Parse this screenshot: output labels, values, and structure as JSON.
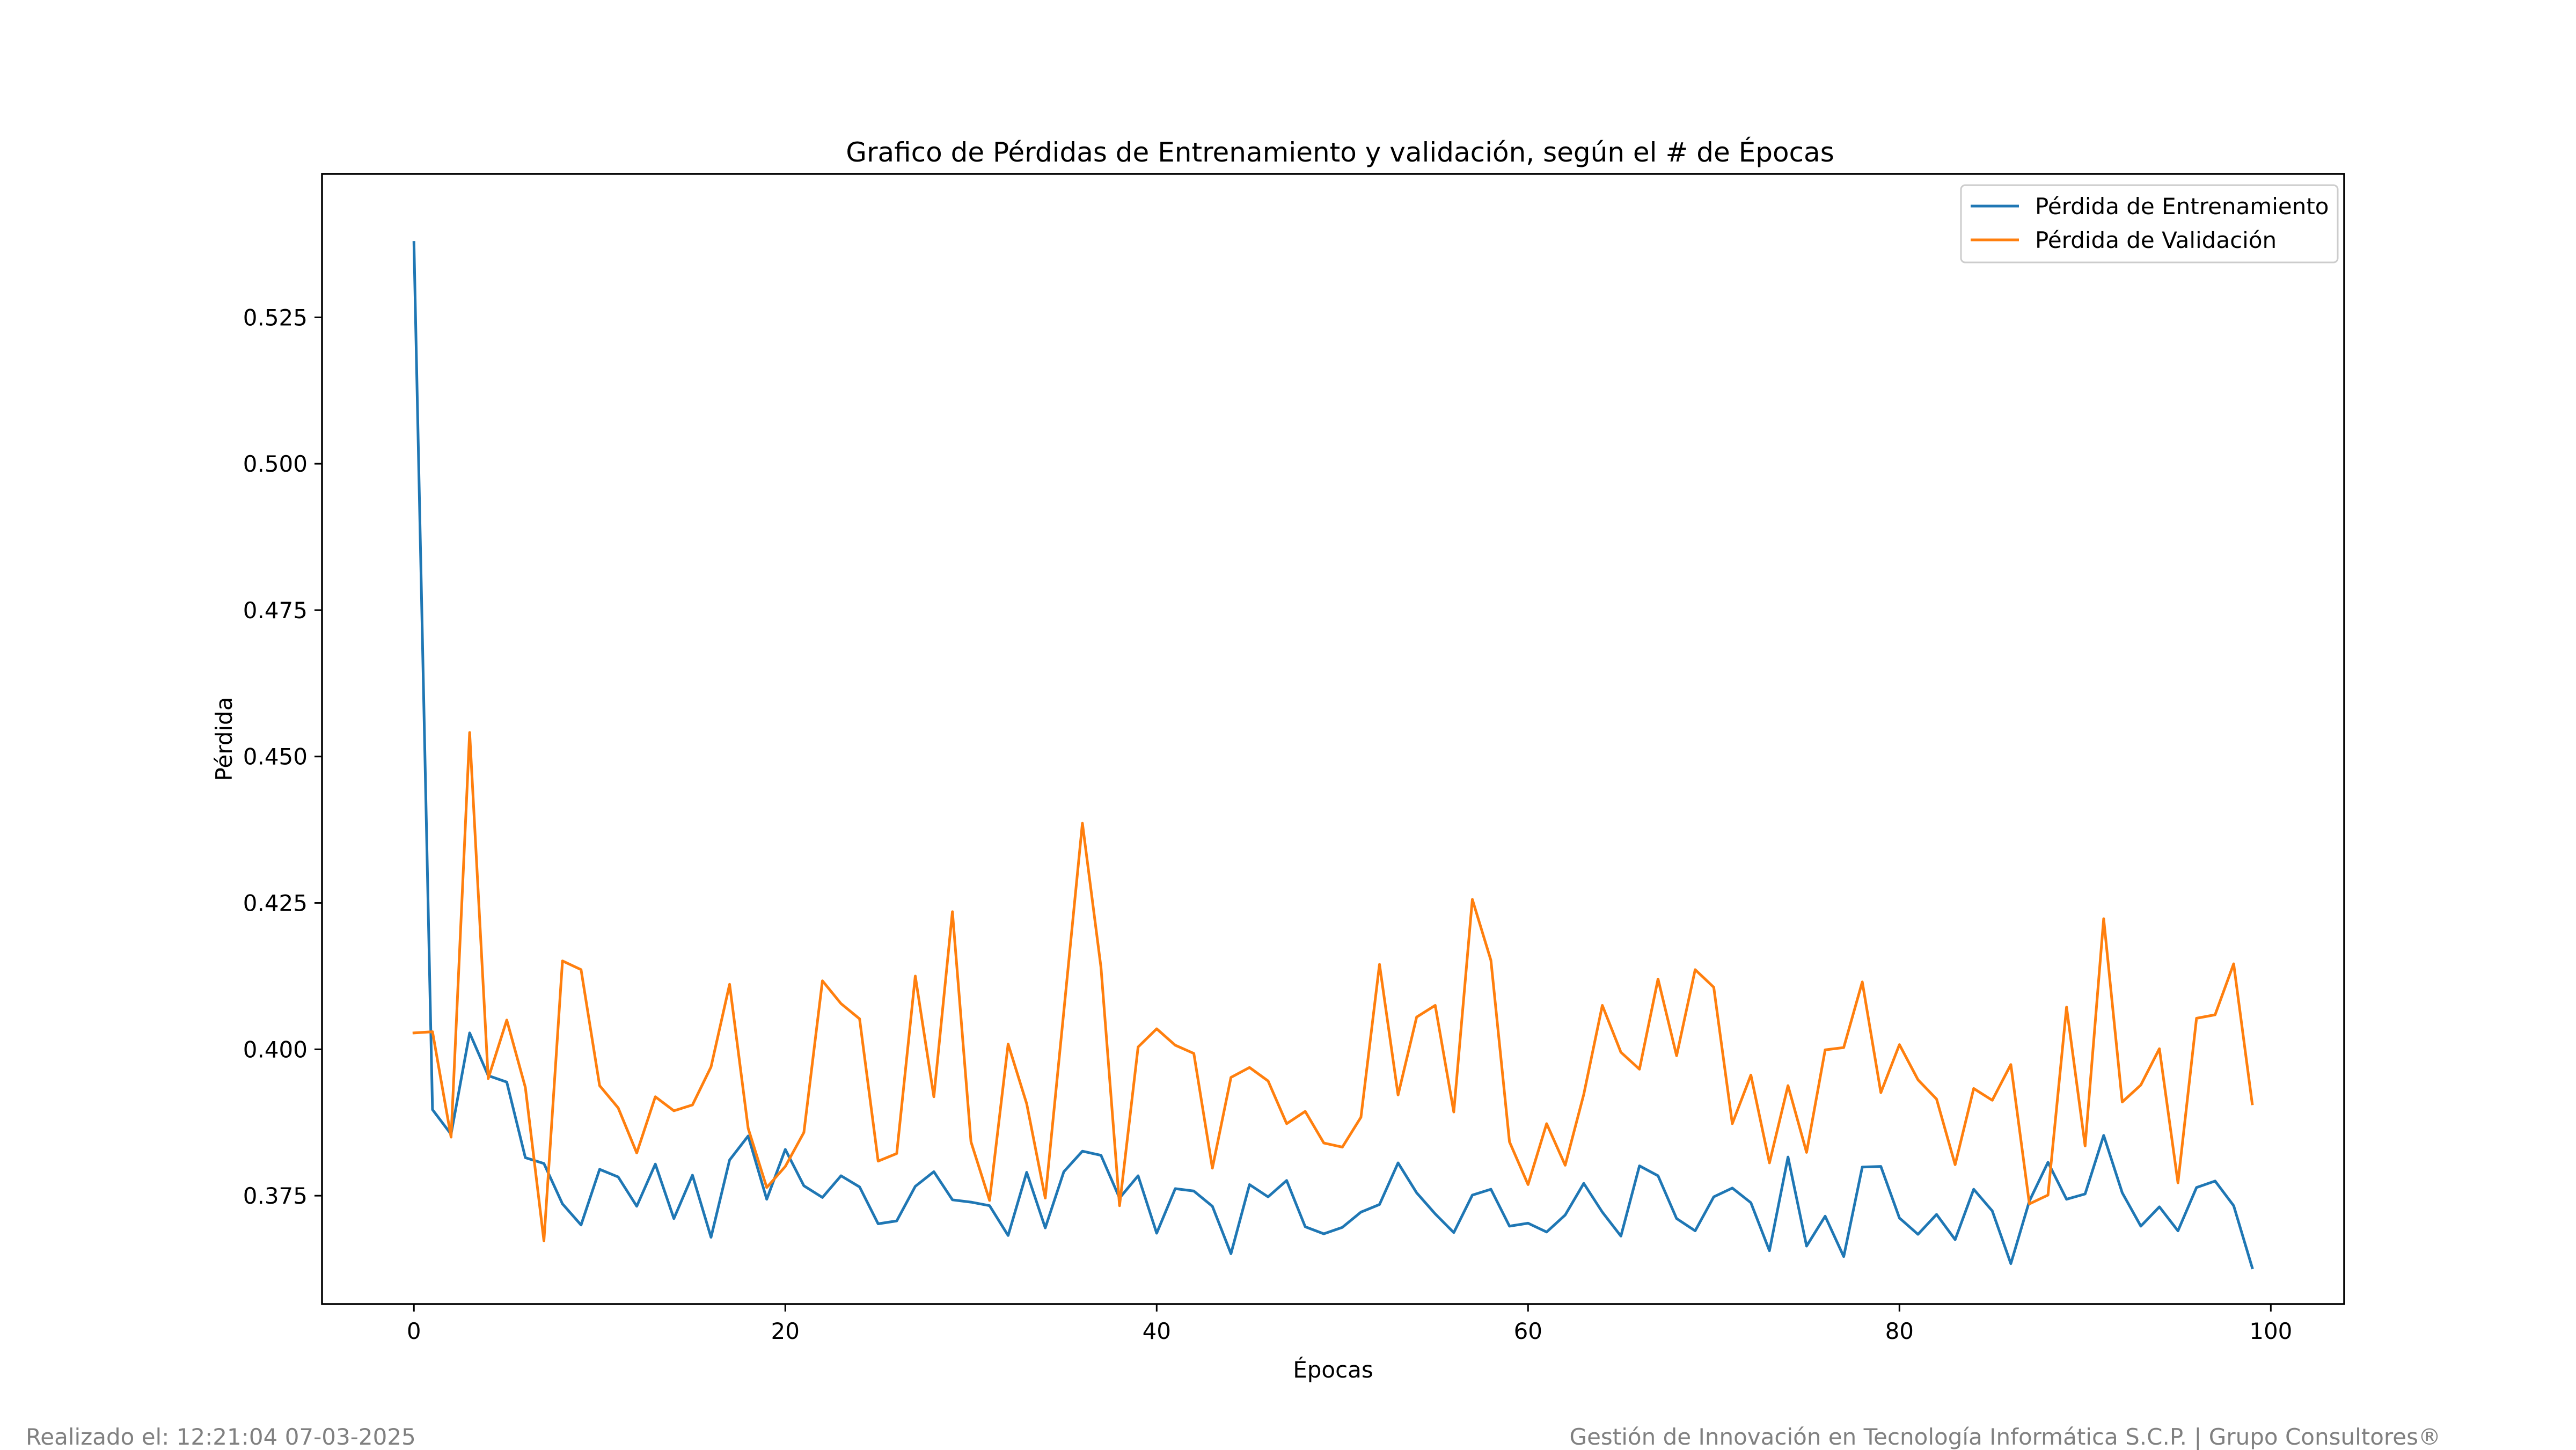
{
  "footer": {
    "left": "Realizado el: 12:21:04 07-03-2025",
    "right": "Gestión de Innovación en Tecnología Informática S.C.P. | Grupo Consultores®"
  },
  "chart_data": {
    "type": "line",
    "title": "Grafico de Pérdidas de Entrenamiento y validación, según el # de Épocas",
    "xlabel": "Épocas",
    "ylabel": "Pérdida",
    "xlim": [
      -4.95,
      103.95
    ],
    "ylim": [
      0.3565,
      0.5495
    ],
    "xticks": [
      0,
      20,
      40,
      60,
      80,
      100
    ],
    "yticks": [
      0.375,
      0.4,
      0.425,
      0.45,
      0.475,
      0.5,
      0.525
    ],
    "ytick_labels": [
      "0.375",
      "0.400",
      "0.425",
      "0.450",
      "0.475",
      "0.500",
      "0.525"
    ],
    "grid": false,
    "legend_position": "upper right",
    "series": [
      {
        "name": "Pérdida de Entrenamiento",
        "color": "#1f77b4",
        "values": [
          0.5378,
          0.3897,
          0.3855,
          0.4028,
          0.3955,
          0.3944,
          0.3815,
          0.3805,
          0.3736,
          0.37,
          0.3795,
          0.3782,
          0.3732,
          0.3804,
          0.3711,
          0.3785,
          0.3679,
          0.3811,
          0.3852,
          0.3744,
          0.3829,
          0.3767,
          0.3747,
          0.3784,
          0.3765,
          0.3702,
          0.3707,
          0.3766,
          0.3791,
          0.3743,
          0.3739,
          0.3733,
          0.3682,
          0.379,
          0.3695,
          0.3791,
          0.3826,
          0.3819,
          0.3746,
          0.3784,
          0.3686,
          0.3762,
          0.3758,
          0.3732,
          0.3651,
          0.3769,
          0.3748,
          0.3776,
          0.3697,
          0.3685,
          0.3696,
          0.3722,
          0.3735,
          0.3806,
          0.3755,
          0.3719,
          0.3687,
          0.3751,
          0.3761,
          0.3698,
          0.3703,
          0.3688,
          0.3717,
          0.3771,
          0.3722,
          0.3681,
          0.3801,
          0.3784,
          0.3711,
          0.369,
          0.3748,
          0.3763,
          0.3738,
          0.3656,
          0.3816,
          0.3664,
          0.3715,
          0.3646,
          0.3799,
          0.38,
          0.3712,
          0.3684,
          0.3718,
          0.3675,
          0.3761,
          0.3724,
          0.3634,
          0.3741,
          0.3807,
          0.3744,
          0.3753,
          0.3853,
          0.3755,
          0.3698,
          0.3731,
          0.369,
          0.3764,
          0.3775,
          0.3733,
          0.3627
        ]
      },
      {
        "name": "Pérdida de Validación",
        "color": "#ff7f0e",
        "values": [
          0.4028,
          0.403,
          0.385,
          0.4541,
          0.395,
          0.405,
          0.3935,
          0.3673,
          0.4151,
          0.4136,
          0.3938,
          0.39,
          0.3823,
          0.3919,
          0.3895,
          0.3905,
          0.397,
          0.4111,
          0.3865,
          0.3764,
          0.38,
          0.3858,
          0.4117,
          0.4078,
          0.4052,
          0.3809,
          0.3822,
          0.4125,
          0.3919,
          0.4235,
          0.3842,
          0.3742,
          0.4009,
          0.3907,
          0.3746,
          0.4065,
          0.4386,
          0.414,
          0.3733,
          0.4004,
          0.4035,
          0.4007,
          0.3993,
          0.3797,
          0.3952,
          0.3969,
          0.3946,
          0.3873,
          0.3894,
          0.384,
          0.3833,
          0.3884,
          0.4145,
          0.3922,
          0.4055,
          0.4075,
          0.3893,
          0.4256,
          0.4152,
          0.3842,
          0.3769,
          0.3873,
          0.3802,
          0.3923,
          0.4075,
          0.3995,
          0.3966,
          0.412,
          0.3989,
          0.4136,
          0.4106,
          0.3873,
          0.3956,
          0.3806,
          0.3938,
          0.3824,
          0.3999,
          0.4003,
          0.4115,
          0.3926,
          0.4008,
          0.3948,
          0.3915,
          0.3803,
          0.3933,
          0.3913,
          0.3974,
          0.3736,
          0.3751,
          0.4072,
          0.3835,
          0.4223,
          0.391,
          0.3939,
          0.4001,
          0.3772,
          0.4053,
          0.4059,
          0.4146,
          0.3907
        ]
      }
    ]
  }
}
